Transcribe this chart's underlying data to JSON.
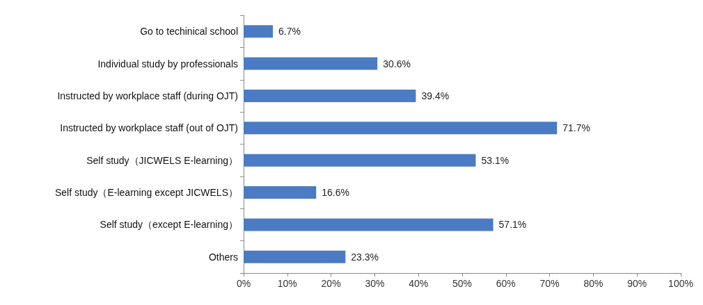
{
  "chart_data": {
    "type": "bar",
    "orientation": "horizontal",
    "categories": [
      "Go to techinical school",
      "Individual study by professionals",
      "Instructed by workplace staff (during OJT)",
      "Instructed by workplace staff (out of OJT)",
      "Self study（JICWELS E-learning）",
      "Self study（E-learning except JICWELS）",
      "Self study（except E-learning）",
      "Others"
    ],
    "values": [
      6.7,
      30.6,
      39.4,
      71.7,
      53.1,
      16.6,
      57.1,
      23.3
    ],
    "value_labels": [
      "6.7%",
      "30.6%",
      "39.4%",
      "71.7%",
      "53.1%",
      "16.6%",
      "57.1%",
      "23.3%"
    ],
    "color": "#4a7bc4",
    "xlim": [
      0,
      100
    ],
    "xticks": [
      {
        "value": 0,
        "label": "0%"
      },
      {
        "value": 10,
        "label": "10%"
      },
      {
        "value": 20,
        "label": "20%"
      },
      {
        "value": 30,
        "label": "30%"
      },
      {
        "value": 40,
        "label": "40%"
      },
      {
        "value": 50,
        "label": "50%"
      },
      {
        "value": 60,
        "label": "60%"
      },
      {
        "value": 70,
        "label": "70%"
      },
      {
        "value": 80,
        "label": "80%"
      },
      {
        "value": 90,
        "label": "90%"
      },
      {
        "value": 100,
        "label": "100%"
      }
    ],
    "grid": false
  }
}
